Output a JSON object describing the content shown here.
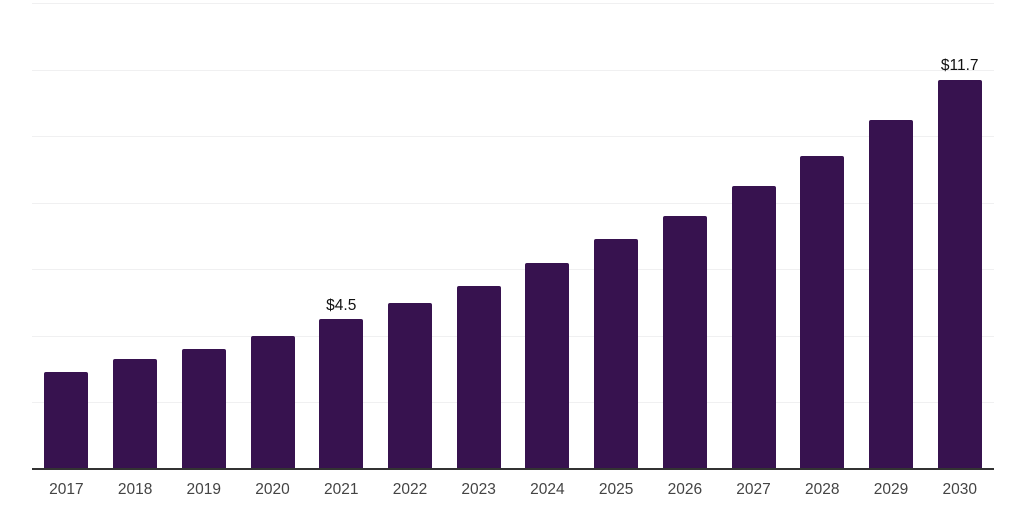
{
  "chart_data": {
    "type": "bar",
    "title": "",
    "xlabel": "",
    "ylabel": "",
    "categories": [
      "2017",
      "2018",
      "2019",
      "2020",
      "2021",
      "2022",
      "2023",
      "2024",
      "2025",
      "2026",
      "2027",
      "2028",
      "2029",
      "2030"
    ],
    "values": [
      2.9,
      3.3,
      3.6,
      4.0,
      4.5,
      5.0,
      5.5,
      6.2,
      6.9,
      7.6,
      8.5,
      9.4,
      10.5,
      11.7
    ],
    "data_labels": [
      {
        "category": "2021",
        "text": "$4.5"
      },
      {
        "category": "2030",
        "text": "$11.7"
      }
    ],
    "value_prefix": "$",
    "ylim": [
      0,
      14
    ],
    "gridline_step": 2,
    "grid": true,
    "y_tick_labels_visible": false,
    "legend": "none",
    "colors": {
      "bar": "#37124F",
      "axis_line": "#333333",
      "gridline": "#f0f0f1",
      "x_tick_label": "#444444",
      "data_label": "#111111",
      "background": "#ffffff"
    }
  }
}
